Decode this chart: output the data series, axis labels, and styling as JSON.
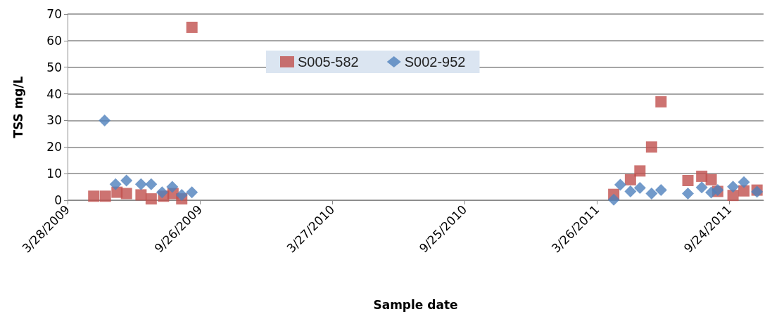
{
  "chart_data": {
    "type": "scatter",
    "xlabel": "Sample date",
    "ylabel": "TSS mg/L",
    "xlim": [
      "2009-03-28",
      "2011-11-10"
    ],
    "xticks": [
      {
        "value": "2009-03-28",
        "label": "3/28/2009"
      },
      {
        "value": "2009-09-26",
        "label": "9/26/2009"
      },
      {
        "value": "2010-03-27",
        "label": "3/27/2010"
      },
      {
        "value": "2010-09-25",
        "label": "9/25/2010"
      },
      {
        "value": "2011-03-26",
        "label": "3/26/2011"
      },
      {
        "value": "2011-09-24",
        "label": "9/24/2011"
      }
    ],
    "ylim": [
      0,
      70
    ],
    "yticks": [
      0,
      10,
      20,
      30,
      40,
      50,
      60,
      70
    ],
    "grid": "y",
    "legend": "top",
    "series": [
      {
        "name": "S005-582",
        "color": "#c0504d",
        "marker": "square",
        "x": [
          "2009-05-03",
          "2009-05-19",
          "2009-06-04",
          "2009-06-17",
          "2009-07-07",
          "2009-07-21",
          "2009-08-07",
          "2009-08-20",
          "2009-09-01",
          "2009-09-15",
          "2011-04-18",
          "2011-05-11",
          "2011-05-24",
          "2011-06-09",
          "2011-06-22",
          "2011-07-29",
          "2011-08-17",
          "2011-08-30",
          "2011-09-08",
          "2011-09-29",
          "2011-10-14",
          "2011-11-01"
        ],
        "values": [
          1.5,
          1.5,
          3,
          2.5,
          2,
          0.5,
          1.5,
          2.5,
          0.5,
          65,
          2.2,
          7.7,
          11,
          20,
          37,
          7.4,
          9,
          7.7,
          3.3,
          1.8,
          3.5,
          3.8
        ]
      },
      {
        "name": "S002-952",
        "color": "#4f81bd",
        "marker": "diamond",
        "x": [
          "2009-05-18",
          "2009-06-02",
          "2009-06-17",
          "2009-07-07",
          "2009-07-21",
          "2009-08-05",
          "2009-08-19",
          "2009-09-01",
          "2009-09-15",
          "2011-04-18",
          "2011-04-27",
          "2011-05-11",
          "2011-05-24",
          "2011-06-09",
          "2011-06-22",
          "2011-07-29",
          "2011-08-17",
          "2011-08-30",
          "2011-09-08",
          "2011-09-29",
          "2011-10-14",
          "2011-11-01"
        ],
        "values": [
          30,
          6,
          7.4,
          6,
          6,
          3,
          5,
          2,
          3,
          0.2,
          5.8,
          3.3,
          4.6,
          2.5,
          3.8,
          2.5,
          4.8,
          2.9,
          3.8,
          5.1,
          6.8,
          3.2
        ]
      }
    ]
  }
}
